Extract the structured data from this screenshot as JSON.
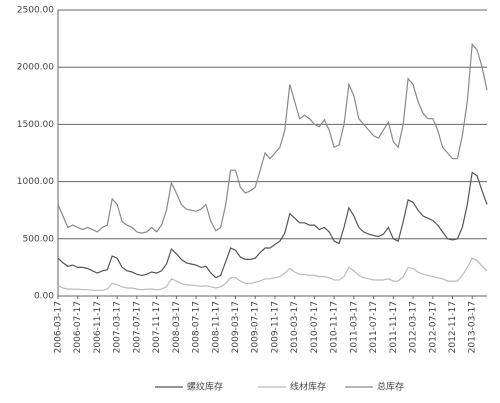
{
  "chart_data": {
    "type": "line",
    "categories": [
      "2006-03-17",
      null,
      null,
      null,
      "2006-07-17",
      null,
      null,
      null,
      "2006-11-17",
      null,
      null,
      null,
      "2007-03-17",
      null,
      null,
      null,
      "2007-07-17",
      null,
      null,
      null,
      "2007-11-17",
      null,
      null,
      null,
      "2008-03-17",
      null,
      null,
      null,
      "2008-07-17",
      null,
      null,
      null,
      "2008-11-17",
      null,
      null,
      null,
      "2009-03-17",
      null,
      null,
      null,
      "2009-07-17",
      null,
      null,
      null,
      "2009-11-17",
      null,
      null,
      null,
      "2010-03-17",
      null,
      null,
      null,
      "2010-07-17",
      null,
      null,
      null,
      "2010-11-17",
      null,
      null,
      null,
      "2011-03-17",
      null,
      null,
      null,
      "2011-07-17",
      null,
      null,
      null,
      "2011-11-17",
      null,
      null,
      null,
      "2012-03-17",
      null,
      null,
      null,
      "2012-07-17",
      null,
      null,
      null,
      "2012-11-17",
      null,
      null,
      null,
      "2013-03-17",
      null,
      null,
      null
    ],
    "series": [
      {
        "name": "螺纹库存",
        "color": "#555555",
        "values": [
          330,
          290,
          260,
          270,
          250,
          250,
          240,
          220,
          200,
          220,
          230,
          350,
          330,
          250,
          220,
          210,
          190,
          180,
          190,
          210,
          200,
          220,
          280,
          410,
          370,
          320,
          290,
          280,
          270,
          250,
          260,
          200,
          160,
          180,
          300,
          420,
          400,
          340,
          320,
          320,
          330,
          380,
          420,
          420,
          450,
          480,
          550,
          720,
          680,
          640,
          640,
          620,
          620,
          580,
          600,
          560,
          480,
          460,
          600,
          770,
          700,
          600,
          560,
          540,
          530,
          520,
          540,
          600,
          500,
          480,
          650,
          840,
          820,
          750,
          700,
          680,
          660,
          620,
          560,
          500,
          490,
          500,
          600,
          800,
          1080,
          1050,
          920,
          800
        ]
      },
      {
        "name": "线材库存",
        "color": "#bbbbbb",
        "values": [
          90,
          70,
          60,
          60,
          60,
          55,
          55,
          50,
          50,
          50,
          60,
          110,
          100,
          80,
          70,
          70,
          60,
          55,
          60,
          60,
          55,
          60,
          80,
          150,
          130,
          110,
          100,
          95,
          90,
          85,
          90,
          80,
          70,
          80,
          110,
          160,
          160,
          130,
          110,
          110,
          120,
          130,
          150,
          150,
          160,
          170,
          200,
          240,
          210,
          190,
          190,
          180,
          180,
          170,
          170,
          160,
          140,
          140,
          170,
          250,
          220,
          180,
          160,
          150,
          140,
          140,
          140,
          150,
          130,
          130,
          170,
          250,
          240,
          210,
          190,
          180,
          170,
          160,
          150,
          130,
          130,
          130,
          180,
          250,
          330,
          310,
          260,
          220
        ]
      },
      {
        "name": "总库存",
        "color": "#8a8a8a",
        "values": [
          800,
          700,
          600,
          620,
          600,
          580,
          600,
          580,
          560,
          600,
          620,
          850,
          800,
          650,
          620,
          600,
          560,
          550,
          560,
          600,
          560,
          620,
          750,
          990,
          900,
          800,
          760,
          750,
          740,
          760,
          800,
          650,
          570,
          600,
          800,
          1100,
          1100,
          950,
          900,
          920,
          950,
          1100,
          1250,
          1200,
          1250,
          1300,
          1450,
          1850,
          1700,
          1550,
          1580,
          1550,
          1500,
          1480,
          1540,
          1450,
          1300,
          1320,
          1500,
          1850,
          1750,
          1550,
          1500,
          1450,
          1400,
          1380,
          1450,
          1520,
          1350,
          1300,
          1500,
          1900,
          1850,
          1700,
          1600,
          1550,
          1550,
          1450,
          1300,
          1250,
          1200,
          1200,
          1400,
          1700,
          2200,
          2150,
          2000,
          1800
        ]
      }
    ],
    "ylim": [
      0,
      2500
    ],
    "yticks": [
      {
        "value": 0,
        "label": "0.00"
      },
      {
        "value": 500,
        "label": "500.00"
      },
      {
        "value": 1000,
        "label": "1000.00"
      },
      {
        "value": 1500,
        "label": "1500.00"
      },
      {
        "value": 2000,
        "label": "2000.00"
      },
      {
        "value": 2500,
        "label": "2500.00"
      }
    ],
    "grid": true
  }
}
